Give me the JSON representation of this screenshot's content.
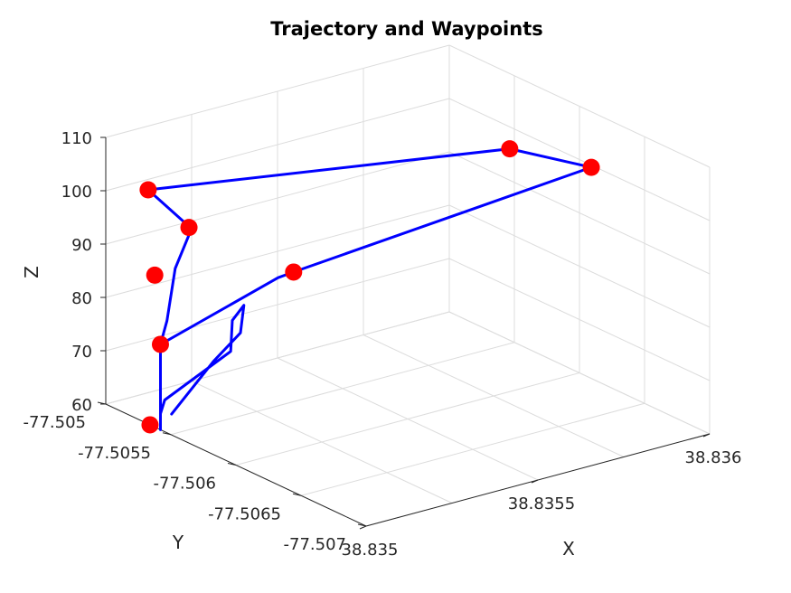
{
  "chart_data": {
    "type": "scatter",
    "title": "Trajectory and Waypoints",
    "xlabel": "X",
    "ylabel": "Y",
    "zlabel": "Z",
    "xlim": [
      38.835,
      38.836
    ],
    "ylim": [
      -77.507,
      -77.505
    ],
    "zlim": [
      60,
      110
    ],
    "x_ticks": [
      "38.835",
      "38.8355",
      "38.836"
    ],
    "y_ticks": [
      "-77.505",
      "-77.5055",
      "-77.506",
      "-77.5065",
      "-77.507"
    ],
    "z_ticks": [
      "60",
      "70",
      "80",
      "90",
      "100",
      "110"
    ],
    "grid": true,
    "colors": {
      "trajectory": "#0000ff",
      "waypoints": "#ff0000"
    },
    "series": [
      {
        "kind": "line",
        "color": "#0000ff",
        "points": [
          [
            38.835,
            -77.50542,
            60
          ],
          [
            38.835,
            -77.50542,
            76
          ],
          [
            38.83546,
            -77.50511,
            77
          ],
          [
            38.83549,
            -77.50515,
            78
          ],
          [
            38.83597,
            -77.50617,
            101
          ],
          [
            38.83585,
            -77.50586,
            103
          ],
          [
            38.83504,
            -77.50522,
            102
          ],
          [
            38.83503,
            -77.50558,
            99
          ],
          [
            38.83499,
            -77.50556,
            92
          ],
          [
            38.835,
            -77.50547,
            81
          ],
          [
            38.835,
            -77.50542,
            76
          ]
        ],
        "loop": [
          [
            38.835,
            -77.50542,
            63
          ],
          [
            38.83502,
            -77.5054,
            65
          ],
          [
            38.83525,
            -77.5053,
            69
          ],
          [
            38.83527,
            -77.50526,
            74
          ],
          [
            38.83533,
            -77.50519,
            75
          ],
          [
            38.83532,
            -77.50519,
            70
          ],
          [
            38.8352,
            -77.5053,
            68
          ],
          [
            38.83504,
            -77.5054,
            62
          ]
        ]
      },
      {
        "kind": "scatter",
        "color": "#ff0000",
        "points": [
          [
            38.835,
            -77.50534,
            60
          ],
          [
            38.835,
            -77.50542,
            76
          ],
          [
            38.83501,
            -77.50535,
            88
          ],
          [
            38.83503,
            -77.50556,
            99
          ],
          [
            38.83504,
            -77.50522,
            102
          ],
          [
            38.83549,
            -77.50515,
            78
          ],
          [
            38.83597,
            -77.50617,
            101
          ],
          [
            38.83585,
            -77.50586,
            103
          ]
        ]
      }
    ]
  }
}
